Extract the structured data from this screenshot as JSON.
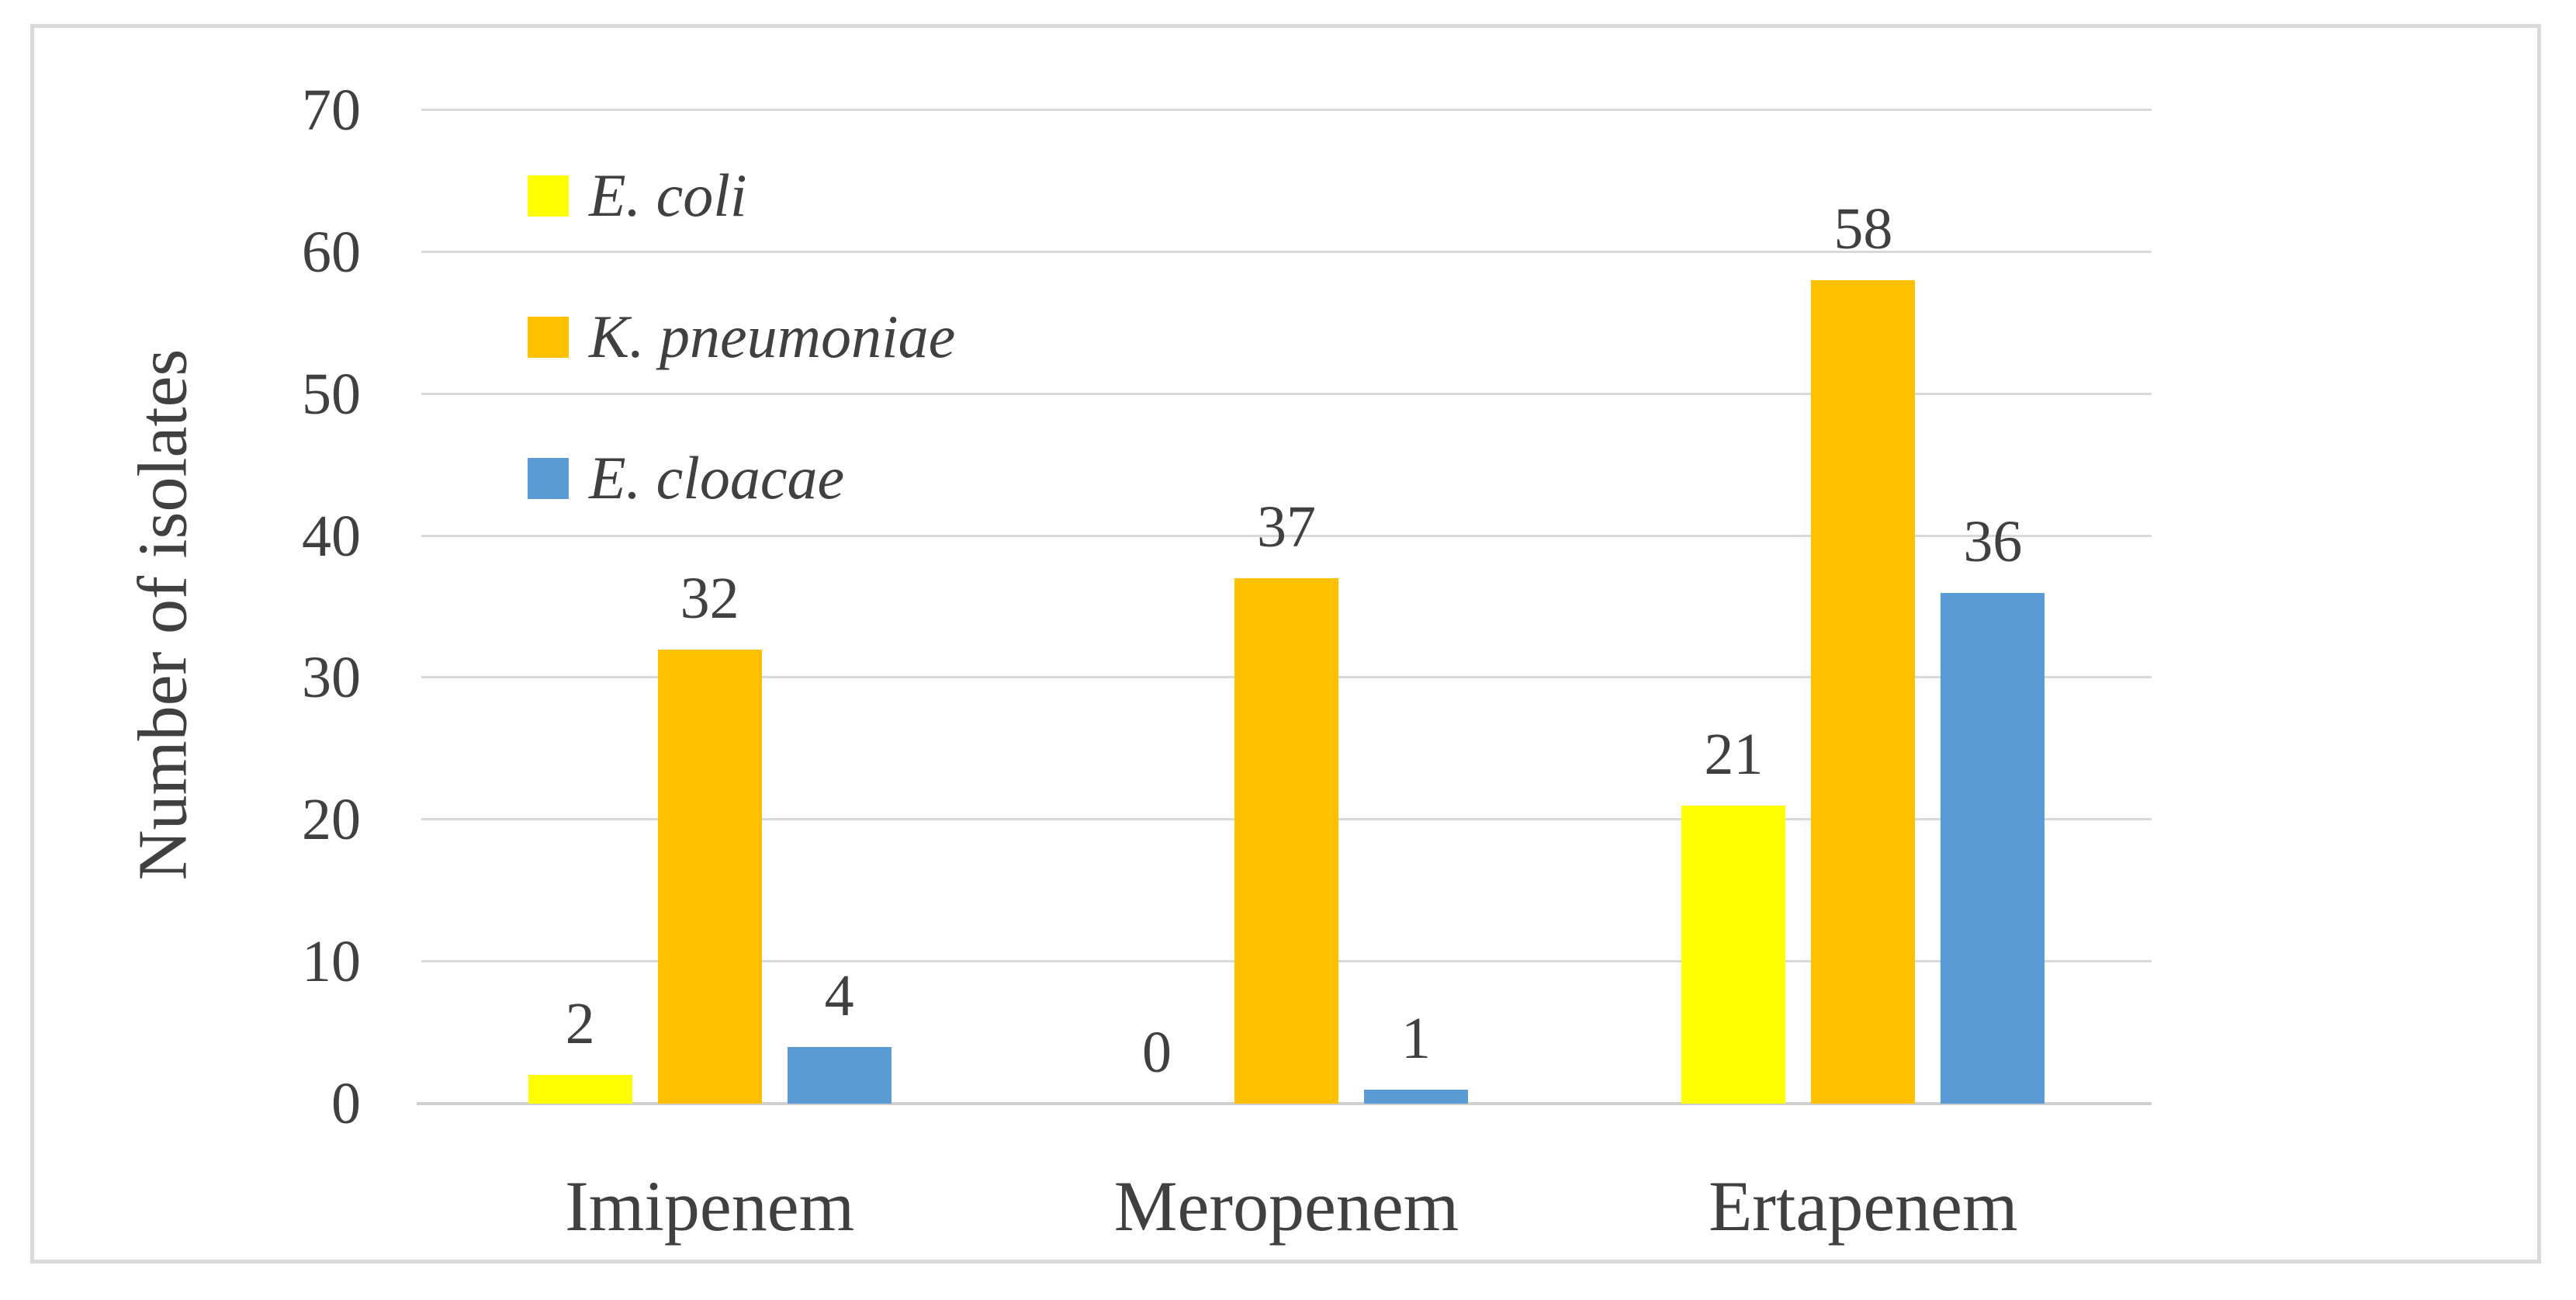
{
  "figure": {
    "background_color": "#ffffff",
    "border_color": "#d9d9d9",
    "text_color": "#404040",
    "gridline_color": "#d9d9d9"
  },
  "chart_data": {
    "type": "bar",
    "title": "",
    "xlabel": "",
    "ylabel": "Number of isolates",
    "categories": [
      "Imipenem",
      "Meropenem",
      "Ertapenem"
    ],
    "series": [
      {
        "name": "E. coli",
        "color": "#ffff00",
        "values": [
          2,
          0,
          21
        ]
      },
      {
        "name": "K. pneumoniae",
        "color": "#ffc000",
        "values": [
          32,
          37,
          58
        ]
      },
      {
        "name": "E. cloacae",
        "color": "#5b9bd5",
        "values": [
          4,
          1,
          36
        ]
      }
    ],
    "data_labels_shown": true,
    "ylim": [
      0,
      70
    ],
    "yticks": [
      0,
      10,
      20,
      30,
      40,
      50,
      60,
      70
    ],
    "grid": true,
    "legend_position": "inside-top-left"
  }
}
